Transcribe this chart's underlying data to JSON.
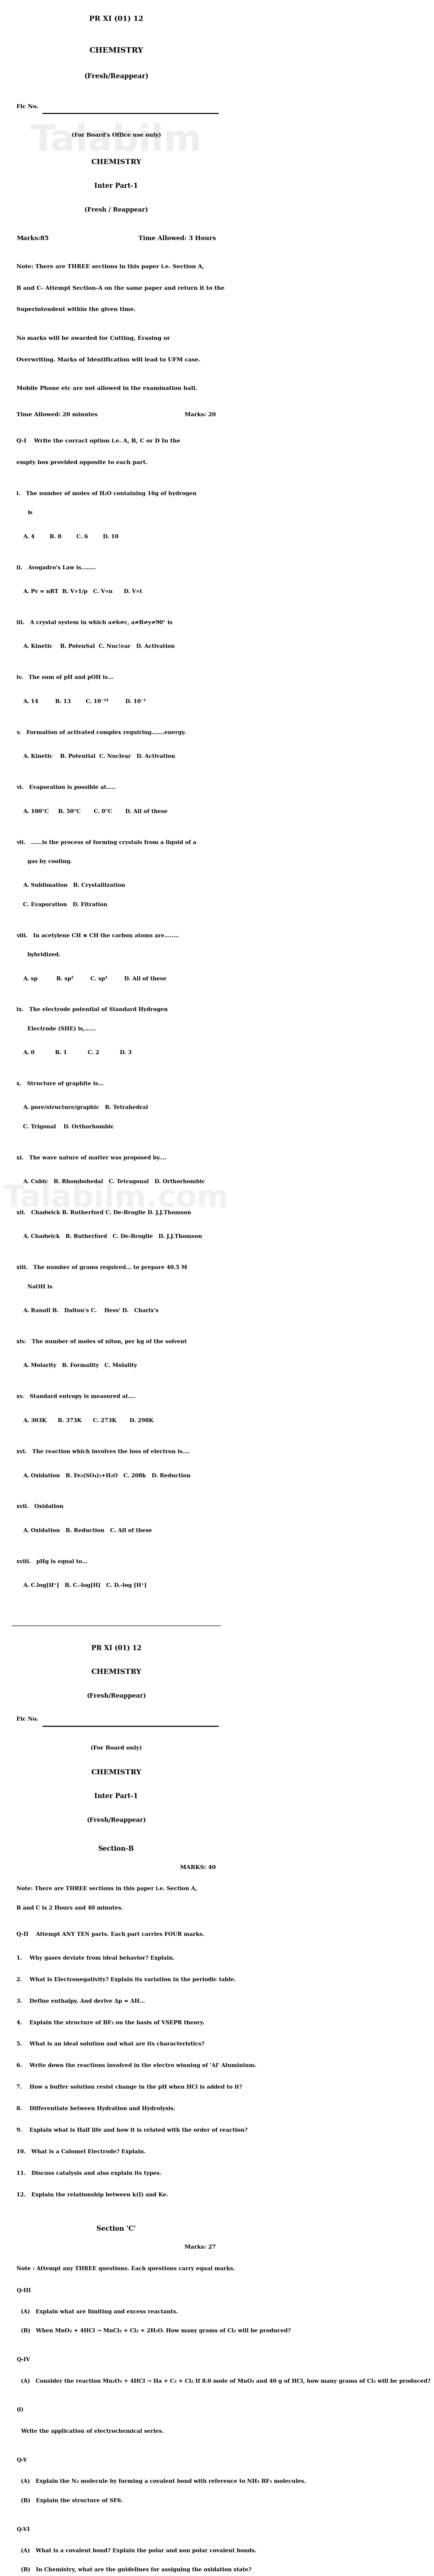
{
  "page_width": 10.0,
  "page_height": 69.58,
  "bg_color": "#ffffff",
  "text_color": "#000000",
  "watermark_color": "#c0c0c0",
  "header": {
    "line1": "PR XI (01) 12",
    "line2": "CHEMISTRY",
    "line3": "(Fresh/Reappear)",
    "fic_no_label": "Fic No.",
    "board_note": "(For Board's Office use only)",
    "line4": "CHEMISTRY",
    "line5": "Inter Part-1",
    "line6": "(Fresh / Reappear)"
  },
  "section_a_header": {
    "marks": "Marks:85",
    "time": "Time Allowed: 3 Hours",
    "note": "Note: There are THREE sections in this paper i.e. Section A, B and C- Attempt Section-A on the same paper and return it to the Superintendent within the given time.",
    "no_marks": "No marks will be awarded for Cutting, Erasing or Overwriting. Marks of Identification will lead to UFM case.",
    "mobile": "Mobile Phone etc are not allowed in the examination hall.",
    "time2": "Time Allowed: 20 minutes",
    "marks2": "Marks: 20",
    "q1_instruction": "Q-I    Write the corract option i.e. A, B, C or D In the empty box provided opposite to each part."
  },
  "mcqs": [
    {
      "num": "i.",
      "question": "The number of moles of H₂O containing 16g of hydrogen is",
      "options": [
        "A. 4",
        "B. 8",
        "C. 6",
        "D. 10"
      ]
    },
    {
      "num": "ii.",
      "question": "Avogadro's Law is........",
      "options": [
        "A. Pv=nRT",
        "B. V∝1/p",
        "C. V∝n",
        "D. V∝t"
      ]
    },
    {
      "num": "iii.",
      "question": "A crystal system in which a≠b≠c, a≠B≠y≠90° is",
      "options": [
        "A. Kinetic",
        "B. PotenSal",
        "C. Nuc!ear",
        "D. Activation"
      ]
    },
    {
      "num": "iv.",
      "question": "The sum of pH and pOH is...",
      "options": [
        "A. 14",
        "B. 13",
        "C. 10⁻¹⁴",
        "D. 10⁻¹"
      ]
    },
    {
      "num": "v.",
      "question": "Formation of activated complex requiring.......energy.",
      "options": [
        "A. Kinetic",
        "B. Potential",
        "C. Nuclear",
        "D. Activation"
      ]
    },
    {
      "num": "vi.",
      "question": "Evaporation is possible at.....",
      "options": [
        "A. 100°C",
        "B. 50°C",
        "C. 0°C",
        "D. All of these"
      ]
    },
    {
      "num": "vii.",
      "question": ".......is the process of forming crystals from a liquid of a gas by cooling.",
      "options": [
        "A. Sublimation",
        "B. Crystallization",
        "C. Evaporation",
        "D. Fitration"
      ]
    },
    {
      "num": "viii.",
      "question": "In acetylene CH ≡ CH the carbon atoms are........ hybridized.",
      "options": [
        "A. sp",
        "B. sp²",
        "C. sp³",
        "D. All of these"
      ]
    },
    {
      "num": "ix.",
      "question": "The electrode potential of Standard Hydrogen Electrode (SHE) is,......",
      "options": [
        "A. 0",
        "B. 1",
        "C. 2",
        "D. 3"
      ]
    },
    {
      "num": "x.",
      "question": "Structure of graphite is...",
      "options": [
        "A. pore/structure/graphic",
        "B. Tetrahedral",
        "C. Trigonal D.Orthrohomic"
      ]
    },
    {
      "num": "xi.",
      "question": "The wave nature of matter was proposed by....",
      "options": [
        "A. Cubic",
        "B. Rhombohedal",
        "C. Tetragonal",
        "D. Orthorhombic"
      ]
    },
    {
      "num": "xii.",
      "question": "Chadwick B. Rutherford C. De-Broglie D. J.J.Thomson",
      "options": [
        "A. Chadwick",
        "B. Rutherford",
        "C. De-Broglie",
        "D. J.J.Thomson"
      ]
    },
    {
      "num": "xiii.",
      "question": "The number of grams required... to prepare 40.5 M NaOH is",
      "options": [
        "A. Ranoll B.",
        "B. Dalton's C.",
        "C. Hess' D.",
        "D. Charix's"
      ]
    },
    {
      "num": "xiv.",
      "question": "The number of moles of niton, per kg of the solvent",
      "options": [
        "A. Molarity",
        "B. Formality",
        "C. Molality"
      ]
    },
    {
      "num": "xv.",
      "question": "Standard entiopy is measured at....",
      "options": [
        "A. 303K",
        "B. 373K",
        "C. 273K",
        "D. 298K"
      ]
    },
    {
      "num": "xvi.",
      "question": "The reaction which involves the loss of electron is....",
      "options": [
        "A. Oxidation",
        "B. Fe₂(SO₄)₃+H₂O",
        "C. 208k",
        "D. Reduction"
      ]
    },
    {
      "num": "xvii.",
      "question": "Oxidation",
      "options": [
        "A. Oxidation",
        "B. Reduction",
        "C. All of these"
      ]
    },
    {
      "num": "xviii.",
      "question": "pHg is equal to...",
      "options": [
        "A. C.log[H⁺]",
        "B. C.-log[H]",
        "C. D.-log [H⁺]"
      ]
    }
  ],
  "page2_header": {
    "code": "PR XI (01) 12",
    "subject": "CHEMISTRY",
    "fresh": "(Fresh/Reappear)",
    "fic": "Fic No.",
    "board": "(For Board only)",
    "subject2": "CHEMISTRY",
    "part": "Inter Part-1",
    "fresh2": "(Fresh/Reappear)"
  },
  "section_b": {
    "heading": "Section-B",
    "marks": "MARKS: 40",
    "instruction": "Note: There are THREE sections in this paper i.e. Section A, B and C is 2 Hours and 40 minutes.",
    "q_instruction": "Q-II    Attempt ANY TEN parts. Each part carries FOUR marks.",
    "questions": [
      "1.    Why gases deviate from ideal behavior? Explain.",
      "2.    What is Electronegativity? Explain its variation in the periodic table.",
      "3.    Define enthalpy. And derive Δp = ΔH...",
      "4.    Explain the structure of BF₃ on the basis of VSEPR theory.",
      "5.    What is an ideal solution and what are its characteristics?",
      "6.    Write down the reactions involved in the electro winning of 'Al' Aluminium.",
      "7.    How a buffer solution resist change in the pH when HCl is added to it?",
      "8.    Differentiate between Hydration and Hydrolysis.",
      "9.    Explain what is Half life and how it is related with the order of reaction?",
      "10.   What is a Calomel Electrode? Explain.",
      "11.   Discuss catalysis and also explain its types.",
      "12.   Explain the relationship between k(I) and Ke."
    ]
  },
  "section_c": {
    "heading": "Section 'C'",
    "marks": "Marks: 27",
    "instruction": "Note : Attempt any THREE questions. Each questions carry equal marks.",
    "questions": [
      {
        "num": "Q-III",
        "parts": [
          "(A)   Explain what are limiting and excess reactants.",
          "(B)   When MnO₂ + 4HCl → MnCl₂ + Cl₂ + 2H₂O. How many grams of Cl₂ will be produced?"
        ]
      },
      {
        "num": "Q-IV",
        "parts": [
          "(A)   Consider the reaction Mn₂O₃ + 4HCl → Ha + C₃ + Cl₂ If 8.0 mole of MnO₂ and 40 g of HCl, how many grams of Cl₂ will be produced?"
        ]
      },
      {
        "num": "(i)",
        "parts": [
          "Write the application of electrochemical series."
        ]
      },
      {
        "num": "Q-V",
        "parts": [
          "(A)   Explain the N₂ molecule by forming a covalent bond with reference to NH₃ BF₃ molecules.",
          "(B)   Explain the structure of SF6."
        ]
      },
      {
        "num": "Q-VI",
        "parts": [
          "(A)   What is a covalent bond? Explain the polar and non polar covalent bonds.",
          "(B)   In Chemistry, what are the guidelines for assigning the oxidation state?"
        ]
      }
    ]
  }
}
